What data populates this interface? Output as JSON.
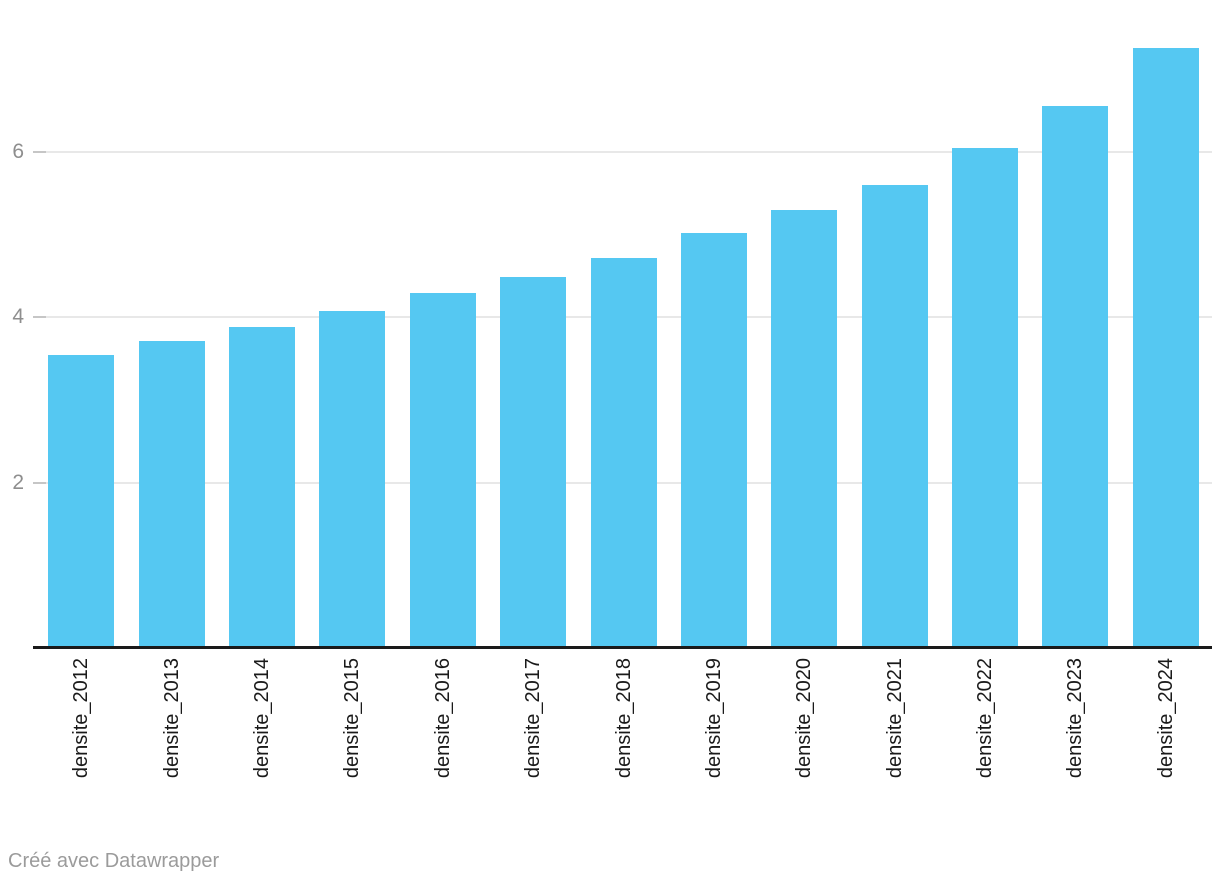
{
  "chart_data": {
    "type": "bar",
    "title": "",
    "xlabel": "",
    "ylabel": "",
    "categories": [
      "densite_2012",
      "densite_2013",
      "densite_2014",
      "densite_2015",
      "densite_2016",
      "densite_2017",
      "densite_2018",
      "densite_2019",
      "densite_2020",
      "densite_2021",
      "densite_2022",
      "densite_2023",
      "densite_2024"
    ],
    "values": [
      3.54,
      3.71,
      3.88,
      4.08,
      4.29,
      4.49,
      4.72,
      5.02,
      5.3,
      5.6,
      6.05,
      6.56,
      7.26
    ],
    "yticks": [
      2,
      4,
      6
    ],
    "ylim": [
      0,
      7.8
    ],
    "grid": true,
    "legend_position": "none"
  },
  "colors": {
    "bar": "#55c8f2",
    "grid": "#e8e8e8",
    "tick": "#c6c6c6",
    "axis_line": "#1a1a1a",
    "y_tick_label": "#8e8e8e",
    "x_category_label": "#1a1a1a",
    "footer_text": "#9b9b9b",
    "background": "#ffffff"
  },
  "footer": {
    "attribution": "Créé avec Datawrapper"
  }
}
